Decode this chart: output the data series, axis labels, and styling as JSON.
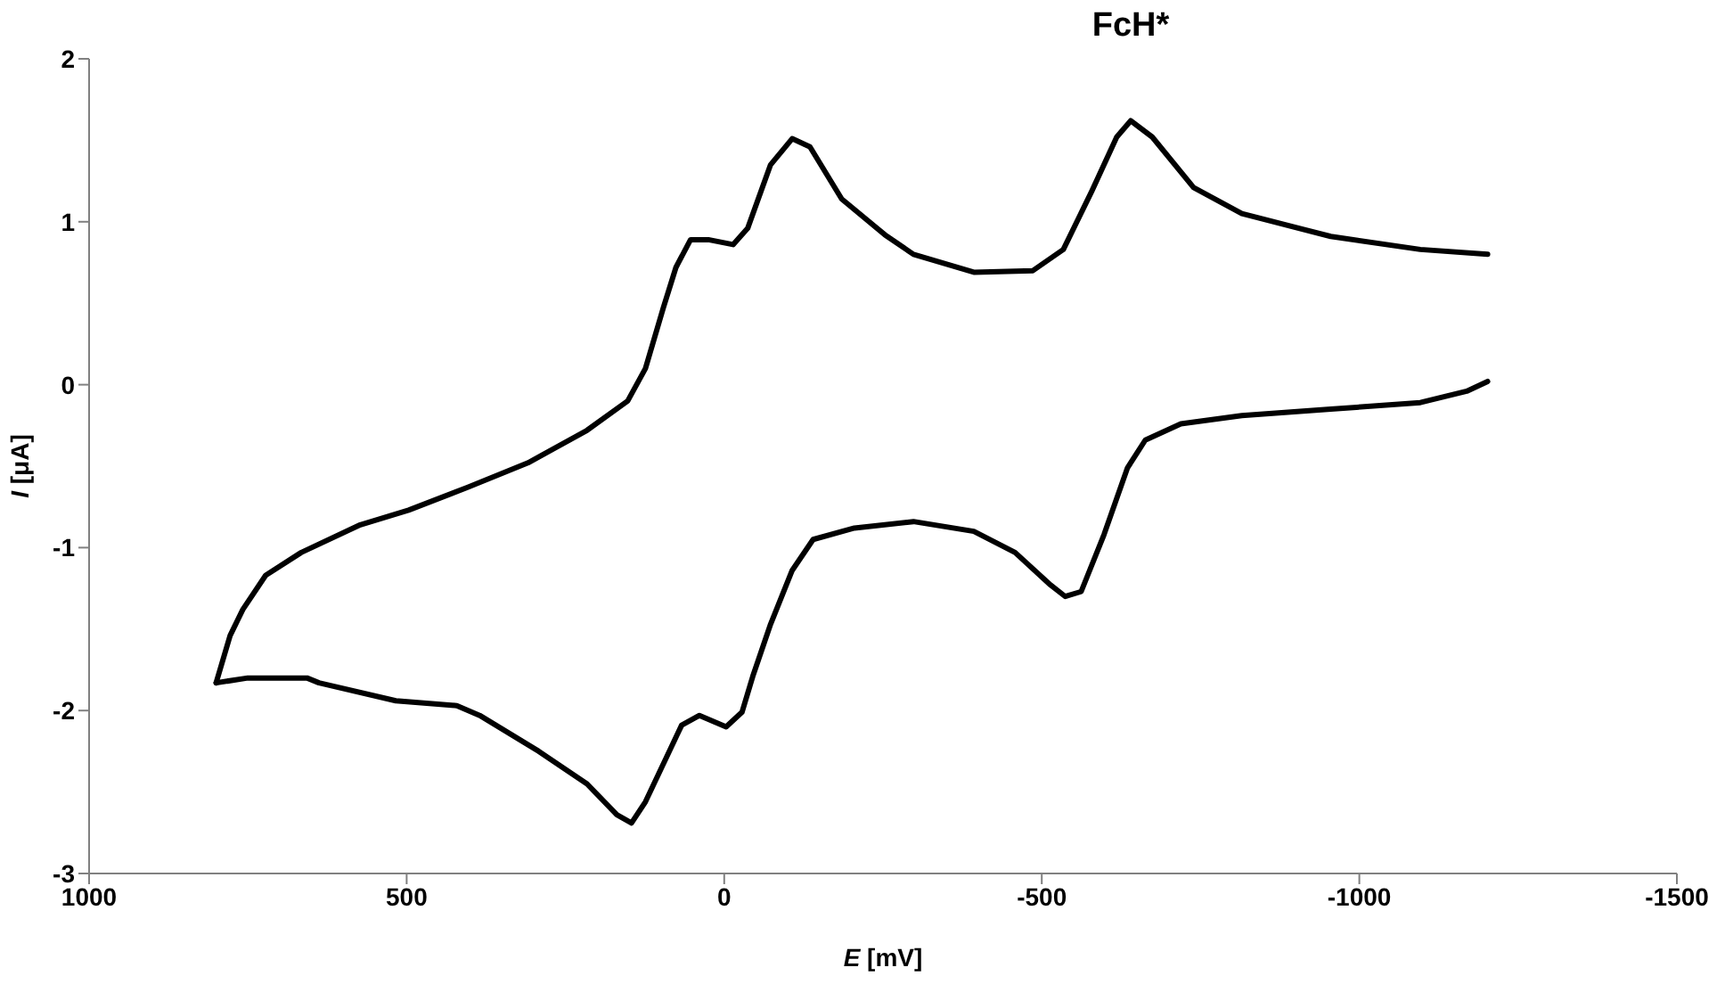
{
  "chart_data": {
    "type": "line",
    "title": "FcH*",
    "xlabel": "E [mV]",
    "ylabel": "I [μA]",
    "xlim": [
      1000,
      -1500
    ],
    "xticks": [
      1000,
      500,
      0,
      -500,
      -1000,
      -1500
    ],
    "ylim": [
      -3,
      2
    ],
    "yticks": [
      -3,
      -2,
      -1,
      0,
      1,
      2
    ],
    "grid": false,
    "marker": "none",
    "line_style": "solid",
    "series": [
      {
        "color": "#000000",
        "x": [
          800,
          778,
          758,
          722,
          666,
          573,
          497,
          404,
          309,
          216,
          152,
          124,
          96,
          76,
          53,
          25,
          -14,
          -37,
          -73,
          -107,
          -135,
          -185,
          -253,
          -298,
          -393,
          -486,
          -534,
          -579,
          -618,
          -640,
          -674,
          -739,
          -815,
          -955,
          -1096,
          -1202
        ],
        "values": [
          -1.83,
          -1.54,
          -1.38,
          -1.17,
          -1.03,
          -0.86,
          -0.77,
          -0.63,
          -0.48,
          -0.28,
          -0.1,
          0.1,
          0.47,
          0.72,
          0.89,
          0.89,
          0.86,
          0.96,
          1.35,
          1.51,
          1.46,
          1.14,
          0.92,
          0.8,
          0.69,
          0.7,
          0.83,
          1.19,
          1.52,
          1.62,
          1.52,
          1.21,
          1.05,
          0.91,
          0.83,
          0.8
        ]
      },
      {
        "color": "#000000",
        "x": [
          -1202,
          -1169,
          -1096,
          -955,
          -815,
          -719,
          -663,
          -635,
          -598,
          -562,
          -537,
          -514,
          -458,
          -393,
          -298,
          -205,
          -140,
          -107,
          -73,
          -45,
          -28,
          -3,
          39,
          67,
          84,
          124,
          146,
          169,
          216,
          292,
          385,
          421,
          517,
          638,
          657,
          750,
          800
        ],
        "values": [
          0.02,
          -0.04,
          -0.11,
          -0.15,
          -0.19,
          -0.24,
          -0.34,
          -0.51,
          -0.92,
          -1.27,
          -1.3,
          -1.23,
          -1.03,
          -0.9,
          -0.84,
          -0.88,
          -0.95,
          -1.14,
          -1.47,
          -1.79,
          -2.01,
          -2.1,
          -2.03,
          -2.09,
          -2.23,
          -2.56,
          -2.69,
          -2.64,
          -2.45,
          -2.25,
          -2.03,
          -1.97,
          -1.94,
          -1.83,
          -1.8,
          -1.8,
          -1.83
        ]
      }
    ]
  }
}
